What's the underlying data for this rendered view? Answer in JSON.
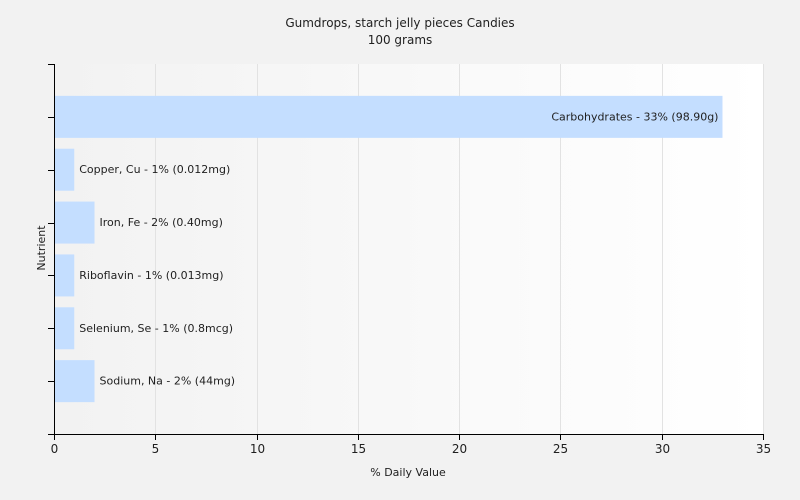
{
  "chart_data": {
    "type": "bar",
    "orientation": "horizontal",
    "title": "Gumdrops, starch jelly pieces Candies",
    "subtitle": "100 grams",
    "xlabel": "% Daily Value",
    "ylabel": "Nutrient",
    "xlim": [
      0,
      35
    ],
    "xticks": [
      0,
      5,
      10,
      15,
      20,
      25,
      30,
      35
    ],
    "grid": true,
    "legend": "none",
    "categories": [
      "Carbohydrates",
      "Copper, Cu",
      "Iron, Fe",
      "Riboflavin",
      "Selenium, Se",
      "Sodium, Na"
    ],
    "values": [
      33,
      1,
      2,
      1,
      1,
      2
    ],
    "labels": [
      "Carbohydrates - 33% (98.90g)",
      "Copper, Cu - 1% (0.012mg)",
      "Iron, Fe - 2% (0.40mg)",
      "Riboflavin - 1% (0.013mg)",
      "Selenium, Se - 1% (0.8mcg)",
      "Sodium, Na - 2% (44mg)"
    ],
    "bar_color": "#c4deff",
    "background_color": "#f2f2f2",
    "gridline_color": "#e2e2e2",
    "axis_color": "#000000"
  }
}
